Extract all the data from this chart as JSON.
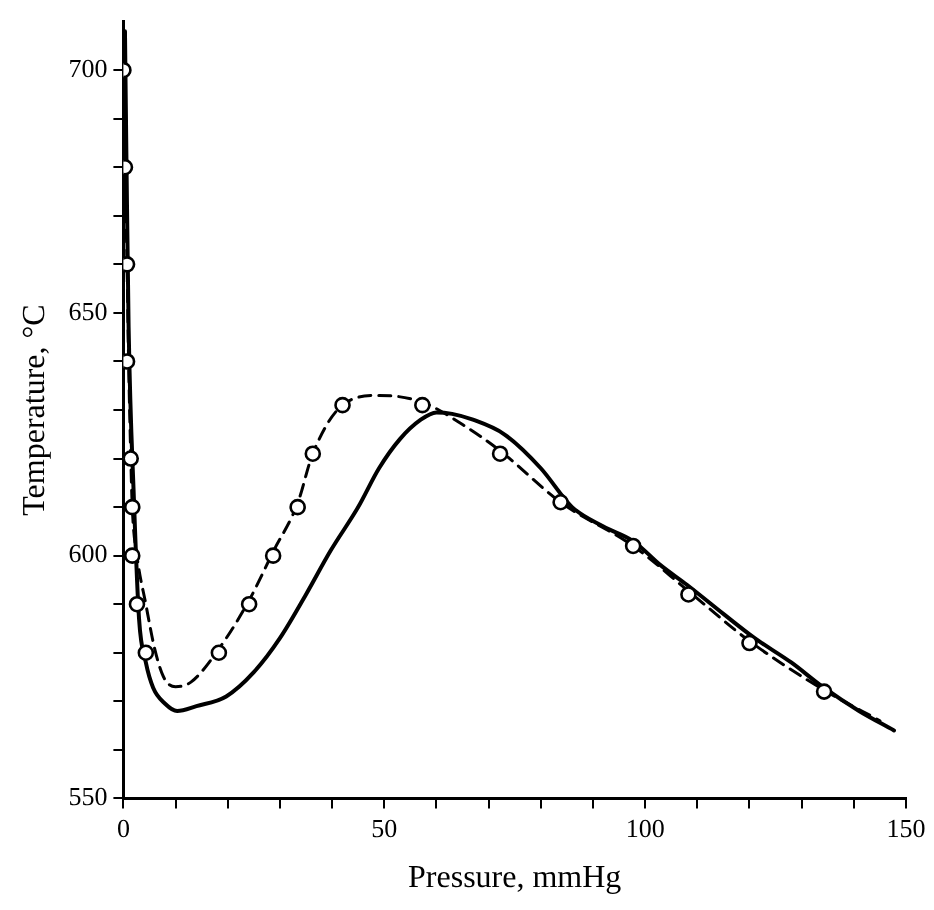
{
  "chart_data": {
    "type": "line",
    "xlabel": "Pressure, mmHg",
    "ylabel": "Temperature, °C",
    "xlim": [
      0,
      150
    ],
    "ylim": [
      550,
      710
    ],
    "xticks": [
      0,
      {
        "value": 10,
        "label": null
      },
      {
        "value": 20,
        "label": null
      },
      {
        "value": 30,
        "label": null
      },
      {
        "value": 40,
        "label": null
      },
      50,
      {
        "value": 60,
        "label": null
      },
      {
        "value": 70,
        "label": null
      },
      {
        "value": 80,
        "label": null
      },
      {
        "value": 90,
        "label": null
      },
      100,
      {
        "value": 110,
        "label": null
      },
      {
        "value": 120,
        "label": null
      },
      {
        "value": 130,
        "label": null
      },
      {
        "value": 140,
        "label": null
      },
      150
    ],
    "yticks": [
      550,
      {
        "value": 560,
        "label": null
      },
      {
        "value": 570,
        "label": null
      },
      {
        "value": 580,
        "label": null
      },
      {
        "value": 590,
        "label": null
      },
      600,
      {
        "value": 610,
        "label": null
      },
      {
        "value": 620,
        "label": null
      },
      {
        "value": 630,
        "label": null
      },
      {
        "value": 640,
        "label": null
      },
      650,
      {
        "value": 660,
        "label": null
      },
      {
        "value": 670,
        "label": null
      },
      {
        "value": 680,
        "label": null
      },
      {
        "value": 690,
        "label": null
      },
      700
    ],
    "grid": false,
    "legend": false,
    "series": [
      {
        "color": "#000000",
        "line_style": "solid",
        "marker": "none",
        "x": [
          0.3,
          0.6,
          1,
          2,
          3,
          4.3,
          5.7,
          8,
          10.3,
          14,
          19.7,
          25,
          30,
          35,
          39.7,
          45,
          49,
          53,
          57,
          60,
          63,
          67,
          73,
          80,
          86,
          92,
          97.7,
          103,
          108,
          115,
          121,
          128,
          134,
          141,
          147.7
        ],
        "values": [
          708,
          680,
          647,
          612,
          587,
          578,
          572.8,
          569.5,
          568,
          569,
          571,
          576,
          583,
          592,
          601,
          610,
          618,
          624,
          628,
          629.5,
          629.2,
          628,
          625,
          618,
          610,
          606,
          603,
          598,
          594,
          588,
          583,
          578,
          573,
          568,
          564
        ]
      },
      {
        "color": "#000000",
        "line_style": "dashed",
        "marker": "none",
        "x": [
          0,
          0.3,
          0.7,
          1,
          1.4,
          1.7,
          2.6,
          4.3,
          6,
          7.7,
          10,
          13,
          18.3,
          24.1,
          28.7,
          33.4,
          36.3,
          42,
          49,
          57.3,
          65,
          72.2,
          83.8,
          97.7,
          108.3,
          120,
          134.3,
          145
        ],
        "values": [
          700,
          680,
          660,
          640,
          620.8,
          610,
          600,
          590,
          580.8,
          575,
          573,
          574,
          580.8,
          590.8,
          600.8,
          610.8,
          621,
          631,
          633,
          631.6,
          627,
          621.6,
          611,
          602,
          592.7,
          582.4,
          572.3,
          566
        ]
      },
      {
        "type": "scatter",
        "color": "#000000",
        "marker": "circle",
        "x": [
          0,
          0.3,
          0.7,
          0.7,
          1.4,
          1.7,
          1.7,
          2.6,
          4.3,
          18.3,
          24.1,
          28.7,
          33.4,
          36.3,
          42,
          57.3,
          72.2,
          83.8,
          97.7,
          108.3,
          120,
          134.3
        ],
        "values": [
          700,
          680,
          660,
          640,
          620,
          610,
          600,
          590,
          580,
          580,
          590,
          600,
          610,
          621,
          631,
          631,
          621,
          611,
          602,
          592,
          582,
          572
        ]
      }
    ]
  }
}
